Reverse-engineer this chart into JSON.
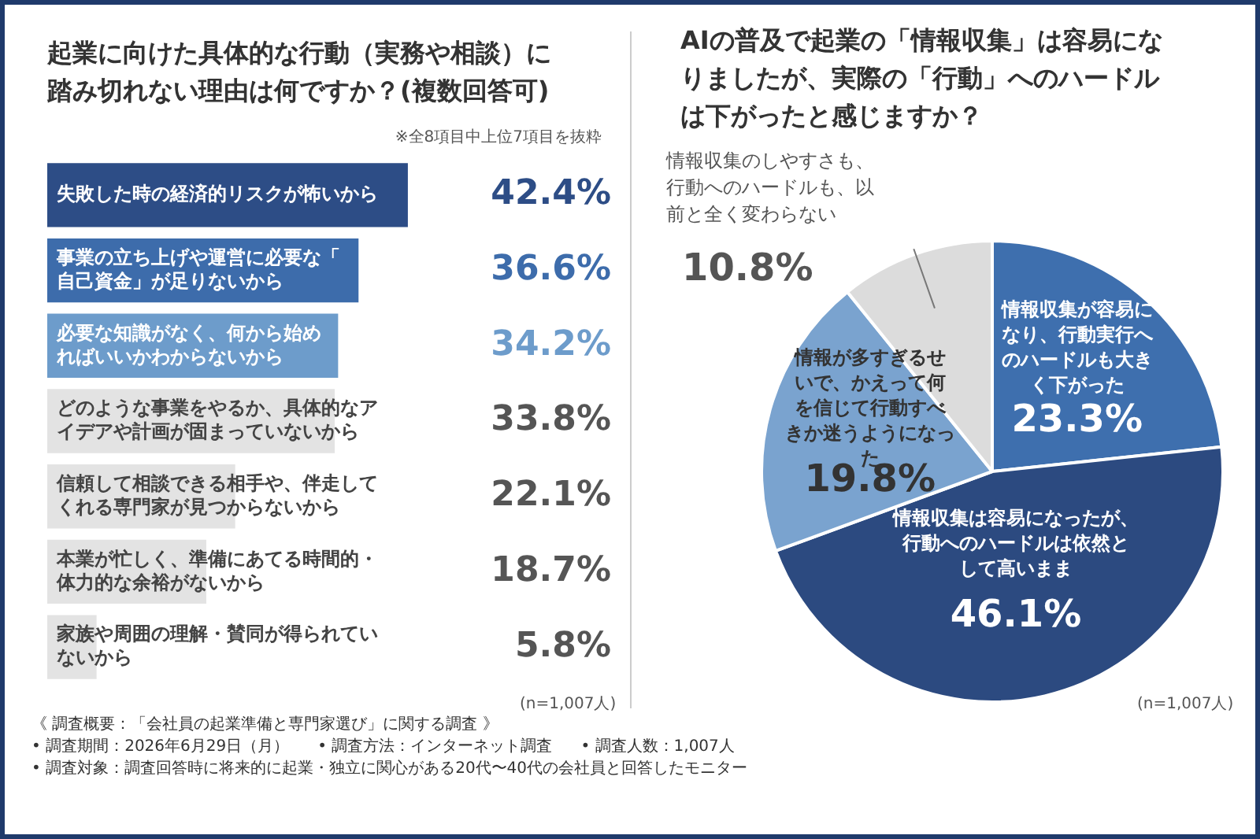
{
  "chart_data": [
    {
      "type": "bar",
      "orientation": "horizontal",
      "title": "起業に向けた具体的な行動（実務や相談）に踏み切れない理由は何ですか？(複数回答可)",
      "categories": [
        "失敗した時の経済的リスクが怖いから",
        "事業の立ち上げや運営に必要な「自己資金」が足りないから",
        "必要な知識がなく、何から始めればいいかわからないから",
        "どのような事業をやるか、具体的なアイデアや計画が固まっていないから",
        "信頼して相談できる相手や、伴走してくれる専門家が見つからないから",
        "本業が忙しく、準備にあてる時間的・体力的な余裕がないから",
        "家族や周囲の理解・賛同が得られていないから"
      ],
      "values": [
        42.4,
        36.6,
        34.2,
        33.8,
        22.1,
        18.7,
        5.8
      ],
      "value_labels": [
        "42.4%",
        "36.6%",
        "34.2%",
        "33.8%",
        "22.1%",
        "18.7%",
        "5.8%"
      ],
      "colors": [
        "#2d4d86",
        "#3d6cab",
        "#6d9ccb",
        "#e3e3e3",
        "#e3e3e3",
        "#e3e3e3",
        "#e3e3e3"
      ],
      "legend": false,
      "annotations": [
        "※全8項目中上位7項目を抜粋",
        "(n=1,007人)",
        "《 調査概要：「会社員の起業準備と専門家選び」に関する調査 》",
        "• 調査期間：2026年6月29日（月）",
        "• 調査方法：インターネット調査",
        "• 調査人数：1,007人",
        "• 調査対象：調査回答時に将来的に起業・独立に関心がある20代〜40代の会社員と回答したモニター"
      ]
    },
    {
      "type": "pie",
      "title": "AIの普及で起業の「情報収集」は容易になりましたが、実際の「行動」へのハードルは下がったと感じますか？",
      "categories": [
        "情報収集が容易になり、行動実行へのハードルも大きく下がった",
        "情報収集は容易になったが、行動へのハードルは依然として高いまま",
        "情報が多すぎるせいで、かえって何を信じて行動すべきか迷うようになった",
        "情報収集のしやすさも、行動へのハードルも、以前と全く変わらない"
      ],
      "values": [
        23.3,
        46.1,
        19.8,
        10.8
      ],
      "value_labels": [
        "23.3%",
        "46.1%",
        "19.8%",
        "10.8%"
      ],
      "colors": [
        "#3e6fae",
        "#2c4a80",
        "#7aa3cf",
        "#dcdcdc"
      ],
      "legend": false,
      "annotations": [
        "(n=1,007人)"
      ]
    }
  ]
}
